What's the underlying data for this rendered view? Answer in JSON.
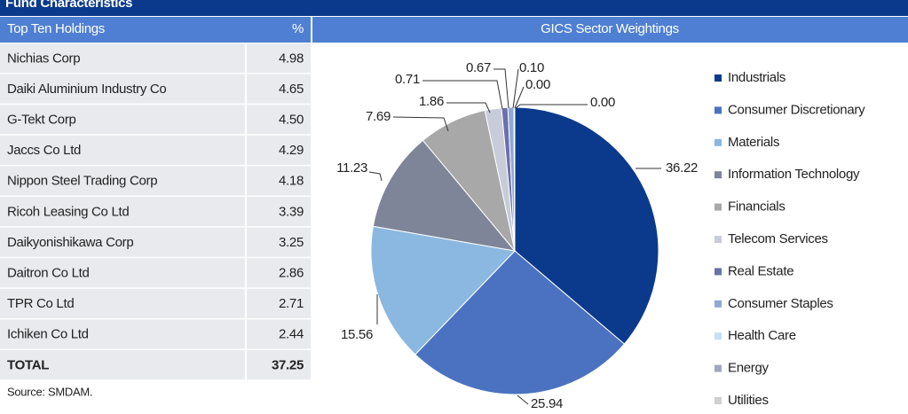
{
  "header": {
    "title": "Fund Characteristics"
  },
  "table": {
    "columns": [
      "Top Ten Holdings",
      "%"
    ],
    "rows": [
      [
        "Nichias Corp",
        "4.98"
      ],
      [
        "Daiki Aluminium Industry Co",
        "4.65"
      ],
      [
        "G-Tekt Corp",
        "4.50"
      ],
      [
        "Jaccs Co Ltd",
        "4.29"
      ],
      [
        "Nippon Steel Trading Corp",
        "4.18"
      ],
      [
        "Ricoh Leasing Co Ltd",
        "3.39"
      ],
      [
        "Daikyonishikawa Corp",
        "3.25"
      ],
      [
        "Daitron Co Ltd",
        "2.86"
      ],
      [
        "TPR Co Ltd",
        "2.71"
      ],
      [
        "Ichiken Co Ltd",
        "2.44"
      ]
    ],
    "total": [
      "TOTAL",
      "37.25"
    ]
  },
  "source": "Source: SMDAM.",
  "chart_data": {
    "type": "pie",
    "title": "GICS Sector Weightings",
    "categories": [
      "Industrials",
      "Consumer Discretionary",
      "Materials",
      "Information Technology",
      "Financials",
      "Telecom Services",
      "Real Estate",
      "Consumer Staples",
      "Health Care",
      "Energy",
      "Utilities"
    ],
    "values": [
      36.22,
      25.94,
      15.56,
      11.23,
      7.69,
      1.86,
      0.71,
      0.67,
      0.1,
      0,
      0
    ],
    "value_labels": [
      "36.22",
      "25.94",
      "15.56",
      "11.23",
      "7.69",
      "1.86",
      "0.71",
      "0.67",
      "0.10",
      "0.00",
      "0.00"
    ],
    "colors": [
      "#0b3a8c",
      "#4a72c0",
      "#8ab8e0",
      "#7f8598",
      "#a8a8a8",
      "#c8ccd8",
      "#6a70a8",
      "#8fa8d8",
      "#c5def5",
      "#a0a6c0",
      "#d0d0d0"
    ],
    "legend": "right"
  }
}
